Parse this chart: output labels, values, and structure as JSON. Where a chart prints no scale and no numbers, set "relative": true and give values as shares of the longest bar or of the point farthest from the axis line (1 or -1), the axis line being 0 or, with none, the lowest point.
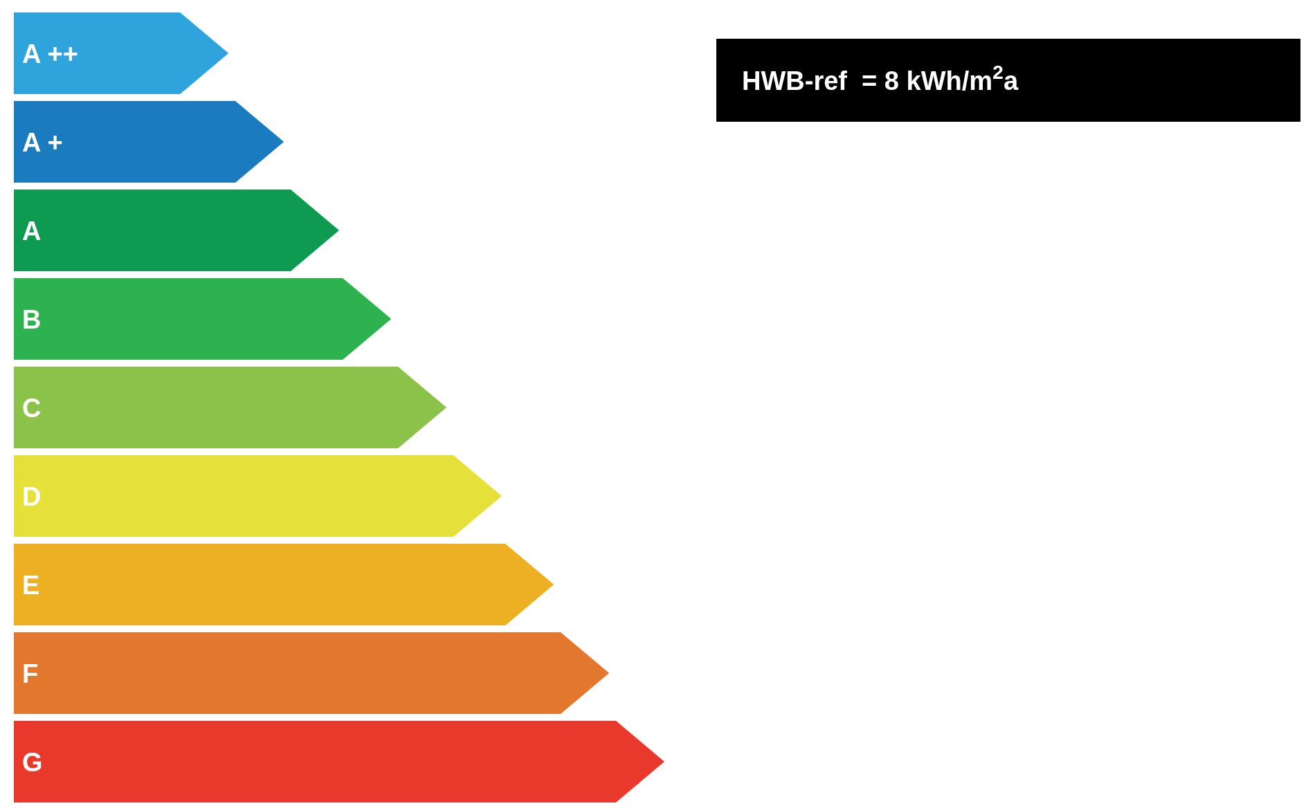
{
  "chart_data": {
    "type": "bar",
    "orientation": "horizontal",
    "relative": true,
    "categories": [
      "A ++",
      "A +",
      "A",
      "B",
      "C",
      "D",
      "E",
      "F",
      "G"
    ],
    "values": [
      0.33,
      0.415,
      0.5,
      0.58,
      0.665,
      0.75,
      0.83,
      0.915,
      1
    ],
    "colors": [
      "#2ea3dc",
      "#1b7bbf",
      "#0f9a52",
      "#2db24f",
      "#8bc34a",
      "#e5e03a",
      "#eeb023",
      "#e2772e",
      "#e8392c"
    ],
    "annotations": [
      "HWB-ref  = 8 kWh/m$^{2}$a"
    ]
  }
}
